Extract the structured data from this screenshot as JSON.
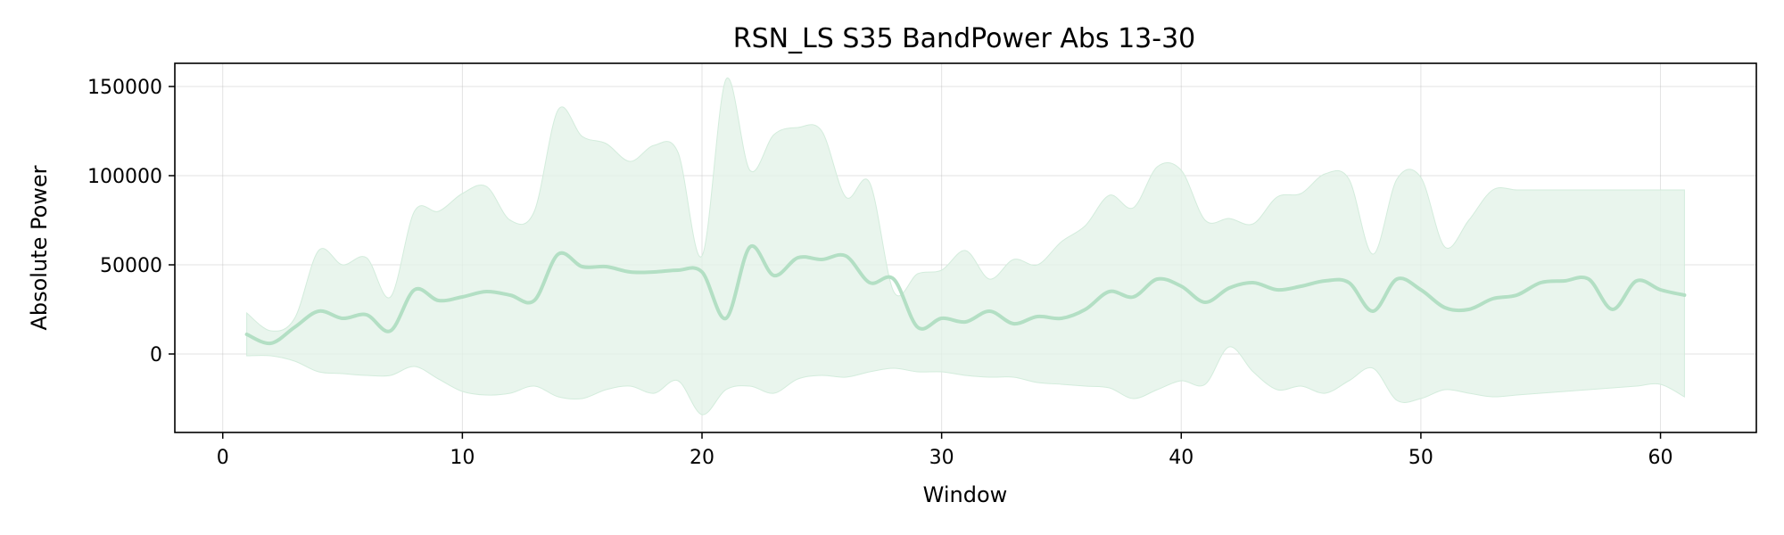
{
  "chart_data": {
    "type": "line",
    "title": "RSN_LS S35 BandPower Abs 13-30",
    "xlabel": "Window",
    "ylabel": "Absolute Power",
    "xlim": [
      -2,
      64
    ],
    "ylim": [
      -44000,
      163000
    ],
    "x_ticks": [
      0,
      10,
      20,
      30,
      40,
      50,
      60
    ],
    "y_ticks": [
      0,
      50000,
      100000,
      150000
    ],
    "grid": true,
    "legend": "none",
    "colors": {
      "line": "#b3dfc4",
      "band": "#e3f3e8",
      "band_edge": "#d3ecdc"
    },
    "series": [
      {
        "x": [
          1,
          2,
          3,
          4,
          5,
          6,
          7,
          8,
          9,
          10,
          11,
          12,
          13,
          14,
          15,
          16,
          17,
          18,
          19,
          20,
          21,
          22,
          23,
          24,
          25,
          26,
          27,
          28,
          29,
          30,
          31,
          32,
          33,
          34,
          35,
          36,
          37,
          38,
          39,
          40,
          41,
          42,
          43,
          44,
          45,
          46,
          47,
          48,
          49,
          50,
          51,
          52,
          53,
          54,
          55,
          56,
          57,
          58,
          59,
          60,
          61
        ],
        "mean": [
          11000,
          6000,
          15000,
          24000,
          20000,
          22000,
          13000,
          36000,
          30000,
          32000,
          35000,
          33000,
          30000,
          56000,
          49000,
          49000,
          46000,
          46000,
          47000,
          46000,
          20000,
          60000,
          44000,
          54000,
          53000,
          55000,
          40000,
          42000,
          15000,
          20000,
          18000,
          24000,
          17000,
          21000,
          20000,
          25000,
          35000,
          32000,
          42000,
          38000,
          29000,
          37000,
          40000,
          36000,
          38000,
          41000,
          40000,
          24000,
          42000,
          36000,
          26000,
          25000,
          31000,
          33000,
          40000,
          41000,
          42000,
          25000,
          41000,
          36000,
          33000
        ],
        "upper": [
          23000,
          13000,
          20000,
          58000,
          50000,
          54000,
          32000,
          80000,
          80000,
          90000,
          94000,
          75000,
          80000,
          137000,
          122000,
          118000,
          108000,
          117000,
          113000,
          55000,
          154000,
          103000,
          123000,
          127000,
          125000,
          88000,
          96000,
          35000,
          45000,
          47000,
          58000,
          42000,
          53000,
          50000,
          63000,
          72000,
          89000,
          82000,
          105000,
          103000,
          75000,
          76000,
          73000,
          88000,
          90000,
          101000,
          98000,
          56000,
          98000,
          99000,
          60000,
          75000,
          92000,
          92000,
          92000,
          92000,
          92000,
          92000,
          92000,
          92000,
          92000
        ],
        "lower": [
          -1000,
          -1000,
          -4000,
          -10000,
          -11000,
          -12000,
          -12000,
          -7000,
          -14000,
          -21000,
          -23000,
          -22000,
          -18000,
          -24000,
          -25000,
          -20000,
          -18000,
          -22000,
          -15000,
          -34000,
          -20000,
          -18000,
          -22000,
          -14000,
          -12000,
          -13000,
          -10000,
          -8000,
          -10000,
          -10000,
          -12000,
          -13000,
          -13000,
          -16000,
          -17000,
          -18000,
          -19000,
          -25000,
          -20000,
          -15000,
          -17000,
          4000,
          -10000,
          -20000,
          -18000,
          -22000,
          -15000,
          -8000,
          -26000,
          -25000,
          -20000,
          -22000,
          -24000,
          -23000,
          -22000,
          -21000,
          -20000,
          -19000,
          -18000,
          -17000,
          -24000
        ]
      }
    ]
  }
}
